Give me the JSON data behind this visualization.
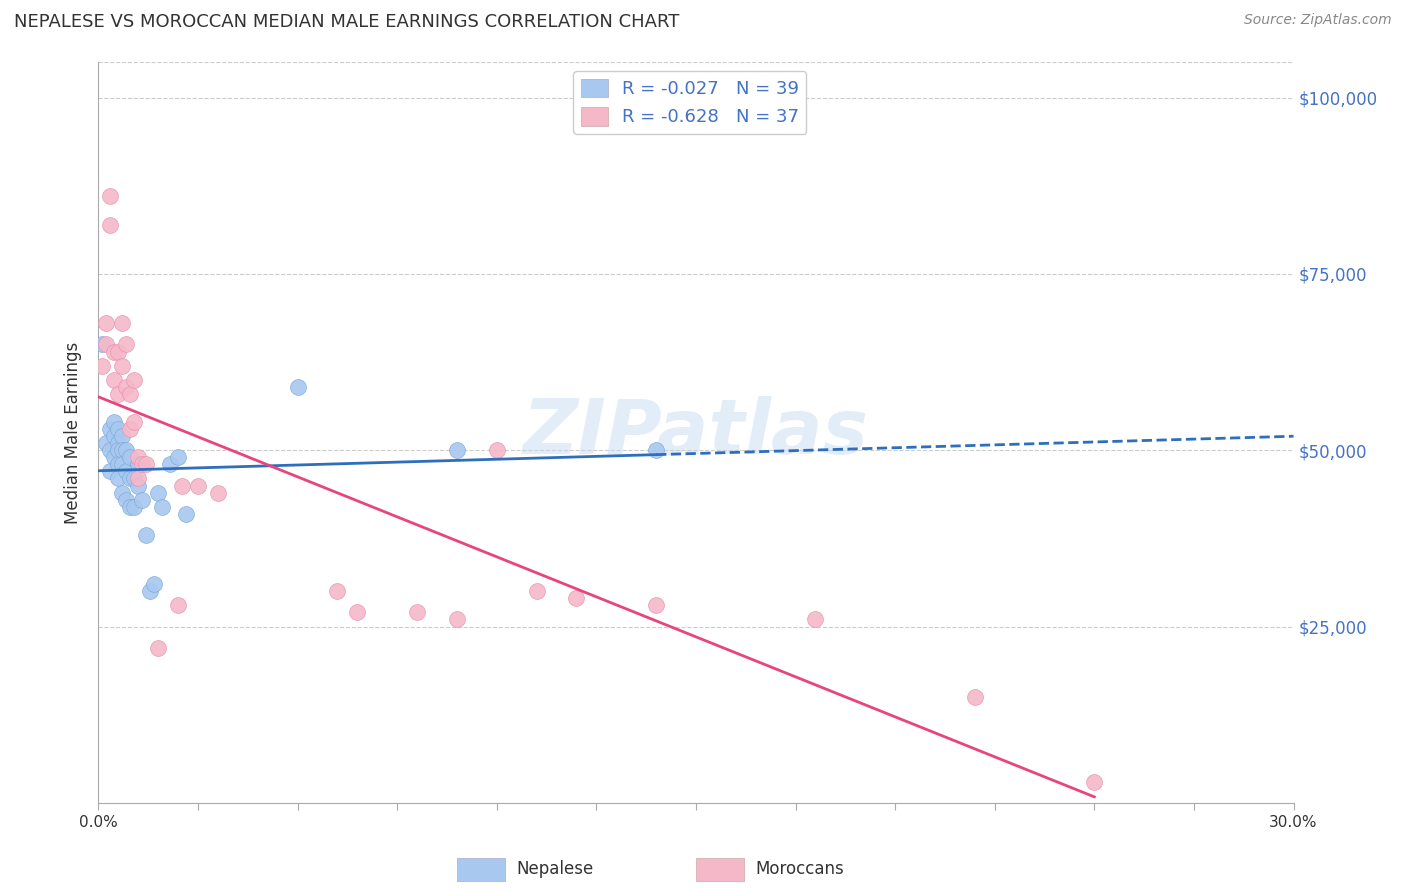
{
  "title": "NEPALESE VS MOROCCAN MEDIAN MALE EARNINGS CORRELATION CHART",
  "source": "Source: ZipAtlas.com",
  "ylabel": "Median Male Earnings",
  "yticks": [
    0,
    25000,
    50000,
    75000,
    100000
  ],
  "ytick_labels": [
    "",
    "$25,000",
    "$50,000",
    "$75,000",
    "$100,000"
  ],
  "xlim": [
    0.0,
    0.3
  ],
  "ylim": [
    0,
    105000
  ],
  "nepalese_color": "#a8c8f0",
  "moroccan_color": "#f5b8c8",
  "nepalese_line_color": "#2e6fbd",
  "moroccan_line_color": "#e8457a",
  "nepalese_label": "Nepalese",
  "moroccan_label": "Moroccans",
  "legend_R_nep": "R = -0.027",
  "legend_N_nep": "N = 39",
  "legend_R_mor": "R = -0.628",
  "legend_N_mor": "N = 37",
  "watermark": "ZIPatlas",
  "background_color": "#ffffff",
  "grid_color": "#cccccc",
  "nepalese_x": [
    0.001,
    0.002,
    0.003,
    0.003,
    0.003,
    0.004,
    0.004,
    0.004,
    0.005,
    0.005,
    0.005,
    0.005,
    0.005,
    0.006,
    0.006,
    0.006,
    0.006,
    0.007,
    0.007,
    0.007,
    0.008,
    0.008,
    0.008,
    0.009,
    0.009,
    0.01,
    0.01,
    0.011,
    0.012,
    0.013,
    0.014,
    0.015,
    0.016,
    0.018,
    0.02,
    0.022,
    0.05,
    0.09,
    0.14
  ],
  "nepalese_y": [
    65000,
    51000,
    53000,
    50000,
    47000,
    54000,
    52000,
    49000,
    53000,
    51000,
    50000,
    48000,
    46000,
    52000,
    50000,
    48000,
    44000,
    50000,
    47000,
    43000,
    49000,
    46000,
    42000,
    46000,
    42000,
    48000,
    45000,
    43000,
    38000,
    30000,
    31000,
    44000,
    42000,
    48000,
    49000,
    41000,
    59000,
    50000,
    50000
  ],
  "moroccan_x": [
    0.001,
    0.002,
    0.002,
    0.003,
    0.003,
    0.004,
    0.004,
    0.005,
    0.005,
    0.006,
    0.006,
    0.007,
    0.007,
    0.008,
    0.008,
    0.009,
    0.009,
    0.01,
    0.01,
    0.011,
    0.012,
    0.015,
    0.02,
    0.021,
    0.025,
    0.03,
    0.06,
    0.065,
    0.08,
    0.09,
    0.1,
    0.11,
    0.12,
    0.14,
    0.18,
    0.22,
    0.25
  ],
  "moroccan_y": [
    62000,
    68000,
    65000,
    86000,
    82000,
    64000,
    60000,
    64000,
    58000,
    62000,
    68000,
    65000,
    59000,
    58000,
    53000,
    60000,
    54000,
    49000,
    46000,
    48000,
    48000,
    22000,
    28000,
    45000,
    45000,
    44000,
    30000,
    27000,
    27000,
    26000,
    50000,
    30000,
    29000,
    28000,
    26000,
    15000,
    3000
  ]
}
